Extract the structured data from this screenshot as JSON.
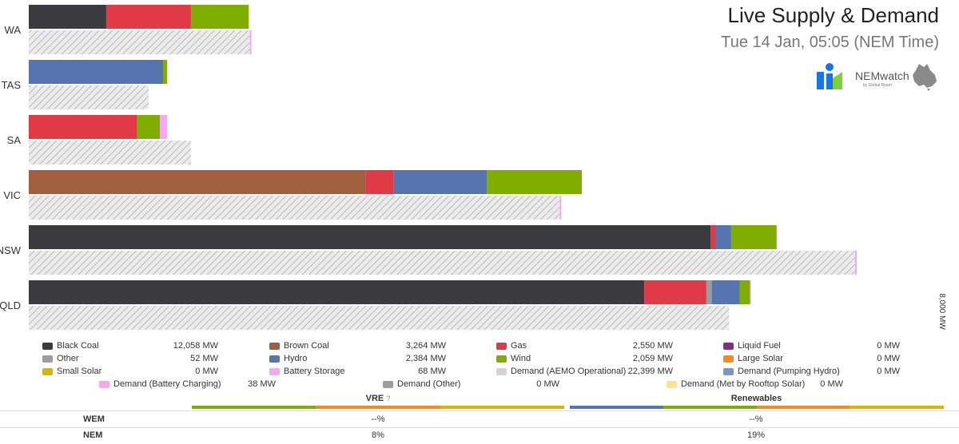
{
  "header": {
    "title": "Live Supply & Demand",
    "timestamp": "Tue 14 Jan, 05:05 (NEM Time)"
  },
  "logo": {
    "text": "NEMwatch",
    "sub": "by Global Roam"
  },
  "chart_data": {
    "type": "bar",
    "orientation": "horizontal",
    "stacked": true,
    "axis_label": "8,000 MW",
    "x_max_mw": 8000,
    "categories": [
      "WA",
      "TAS",
      "SA",
      "VIC",
      "NSW",
      "QLD"
    ],
    "colors": {
      "Black Coal": "#3b3a3f",
      "Brown Coal": "#a0603f",
      "Gas": "#e03a46",
      "Hydro": "#5674b0",
      "Wind": "#7fae00",
      "Battery Storage": "#f7a6f2",
      "Other": "#9d9da1",
      "Demand": "#d4d4d4",
      "Battery Charging": "#f7a6f2"
    },
    "supply": [
      {
        "region": "WA",
        "segments": [
          [
            "Black Coal",
            750
          ],
          [
            "Gas",
            820
          ],
          [
            "Wind",
            560
          ]
        ]
      },
      {
        "region": "TAS",
        "segments": [
          [
            "Hydro",
            1300
          ],
          [
            "Wind",
            40
          ]
        ]
      },
      {
        "region": "SA",
        "segments": [
          [
            "Gas",
            1050
          ],
          [
            "Wind",
            220
          ],
          [
            "Battery Storage",
            68
          ]
        ]
      },
      {
        "region": "VIC",
        "segments": [
          [
            "Brown Coal",
            3264
          ],
          [
            "Gas",
            270
          ],
          [
            "Hydro",
            900
          ],
          [
            "Wind",
            920
          ]
        ]
      },
      {
        "region": "NSW",
        "segments": [
          [
            "Black Coal",
            6600
          ],
          [
            "Gas",
            50
          ],
          [
            "Hydro",
            150
          ],
          [
            "Wind",
            440
          ]
        ]
      },
      {
        "region": "QLD",
        "segments": [
          [
            "Black Coal",
            5960
          ],
          [
            "Gas",
            600
          ],
          [
            "Other",
            52
          ],
          [
            "Hydro",
            270
          ],
          [
            "Wind",
            100
          ],
          [
            "Battery Storage",
            10
          ]
        ]
      }
    ],
    "demand": [
      {
        "region": "WA",
        "value": 2140,
        "battery_charging": 15
      },
      {
        "region": "TAS",
        "value": 1160,
        "battery_charging": 0
      },
      {
        "region": "SA",
        "value": 1570,
        "battery_charging": 0
      },
      {
        "region": "VIC",
        "value": 5140,
        "battery_charging": 15
      },
      {
        "region": "NSW",
        "value": 8000,
        "battery_charging": 15
      },
      {
        "region": "QLD",
        "value": 6780,
        "battery_charging": 0
      }
    ]
  },
  "legend": [
    {
      "name": "Black Coal",
      "value": "12,058 MW",
      "color": "#3b3a3f"
    },
    {
      "name": "Brown Coal",
      "value": "3,264 MW",
      "color": "#a0603f"
    },
    {
      "name": "Gas",
      "value": "2,550 MW",
      "color": "#e03a46"
    },
    {
      "name": "Liquid Fuel",
      "value": "0 MW",
      "color": "#8a2a86"
    },
    {
      "name": "Other",
      "value": "52 MW",
      "color": "#9d9da1"
    },
    {
      "name": "Hydro",
      "value": "2,384 MW",
      "color": "#5674b0"
    },
    {
      "name": "Wind",
      "value": "2,059 MW",
      "color": "#7fae00"
    },
    {
      "name": "Large Solar",
      "value": "0 MW",
      "color": "#f28c1e"
    },
    {
      "name": "Small Solar",
      "value": "0 MW",
      "color": "#d8b600"
    },
    {
      "name": "Battery Storage",
      "value": "68 MW",
      "color": "#f7a6f2"
    },
    {
      "name": "Demand (AEMO Operational)",
      "value": "22,399 MW",
      "color": "#d4d4d4"
    },
    {
      "name": "Demand (Pumping Hydro)",
      "value": "0 MW",
      "color": "#7a95c6"
    },
    {
      "name": "Demand (Battery Charging)",
      "value": "38 MW",
      "color": "#f7a6f2"
    },
    {
      "name": "Demand (Other)",
      "value": "0 MW",
      "color": "#9d9da1"
    },
    {
      "name": "Demand (Met by Rooftop Solar)",
      "value": "0 MW",
      "color": "#fbe28e"
    }
  ],
  "summary": {
    "vre_label": "VRE",
    "vre_info": "?",
    "renewables_label": "Renewables",
    "rows": [
      {
        "label": "WEM",
        "vre": "--%",
        "renewables": "--%"
      },
      {
        "label": "NEM",
        "vre": "8%",
        "renewables": "19%"
      }
    ],
    "vre_band_colors": [
      "#7fae00",
      "#f28c1e",
      "#d8b600"
    ],
    "renewables_band_colors": [
      "#5674b0",
      "#7fae00",
      "#f28c1e",
      "#d8b600"
    ]
  }
}
